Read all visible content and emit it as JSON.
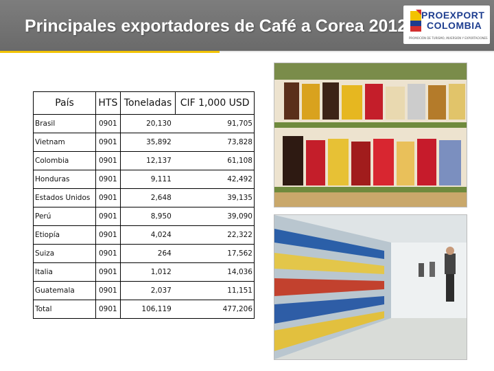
{
  "slide": {
    "title": "Principales exportadores de Café a Corea 2012",
    "logo": {
      "line1": "PROEXPORT",
      "line2": "COLOMBIA",
      "tagline": "PROMOCIÓN DE TURISMO, INVERSIÓN Y EXPORTACIONES"
    }
  },
  "table": {
    "headers": [
      "País",
      "HTS",
      "Toneladas",
      "CIF 1,000 USD"
    ],
    "rows": [
      {
        "pais": "Brasil",
        "hts": "0901",
        "toneladas": "20,130",
        "cif": "91,705"
      },
      {
        "pais": "Vietnam",
        "hts": "0901",
        "toneladas": "35,892",
        "cif": "73,828"
      },
      {
        "pais": "Colombia",
        "hts": "0901",
        "toneladas": "12,137",
        "cif": "61,108"
      },
      {
        "pais": "Honduras",
        "hts": "0901",
        "toneladas": "9,111",
        "cif": "42,492"
      },
      {
        "pais": "Estados Unidos",
        "hts": "0901",
        "toneladas": "2,648",
        "cif": "39,135"
      },
      {
        "pais": "Perú",
        "hts": "0901",
        "toneladas": "8,950",
        "cif": "39,090"
      },
      {
        "pais": "Etiopía",
        "hts": "0901",
        "toneladas": "4,024",
        "cif": "22,322"
      },
      {
        "pais": "Suiza",
        "hts": "0901",
        "toneladas": "264",
        "cif": "17,562"
      },
      {
        "pais": "Italia",
        "hts": "0901",
        "toneladas": "1,012",
        "cif": "14,036"
      },
      {
        "pais": "Guatemala",
        "hts": "0901",
        "toneladas": "2,037",
        "cif": "11,151"
      },
      {
        "pais": "Total",
        "hts": "0901",
        "toneladas": "106,119",
        "cif": "477,206"
      }
    ]
  },
  "colors": {
    "header_bg": "#6e6e6e",
    "accent": "#f2c300",
    "brand_blue": "#1d3d8f",
    "brand_red": "#d32f2f"
  },
  "images": [
    "coffee-shelf-photo",
    "supermarket-aisle-photo"
  ]
}
